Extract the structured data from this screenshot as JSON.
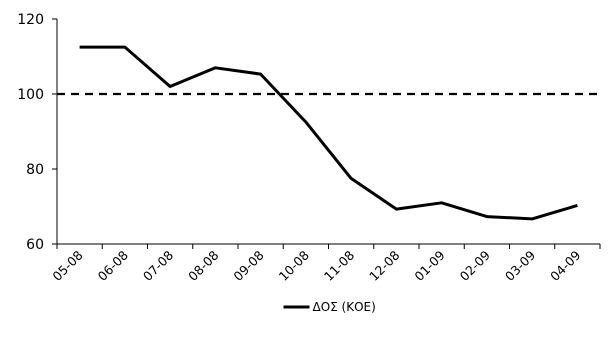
{
  "chart_data": {
    "type": "line",
    "title": "",
    "xlabel": "",
    "ylabel": "",
    "categories": [
      "05-08",
      "06-08",
      "07-08",
      "08-08",
      "09-08",
      "10-08",
      "11-08",
      "12-08",
      "01-09",
      "02-09",
      "03-09",
      "04-09"
    ],
    "series": [
      {
        "name": "ΔΟΣ (ΚΟΕ)",
        "color": "#000000",
        "values": [
          112.5,
          112.5,
          102,
          107,
          105.3,
          92.5,
          77.5,
          69.3,
          71,
          67.3,
          66.7,
          70.3
        ]
      }
    ],
    "reference_line": {
      "value": 100,
      "style": "dashed",
      "color": "#000000"
    },
    "ylim": [
      60,
      120
    ],
    "yticks": [
      60,
      80,
      100,
      120
    ],
    "grid": false,
    "legend_position": "bottom"
  }
}
